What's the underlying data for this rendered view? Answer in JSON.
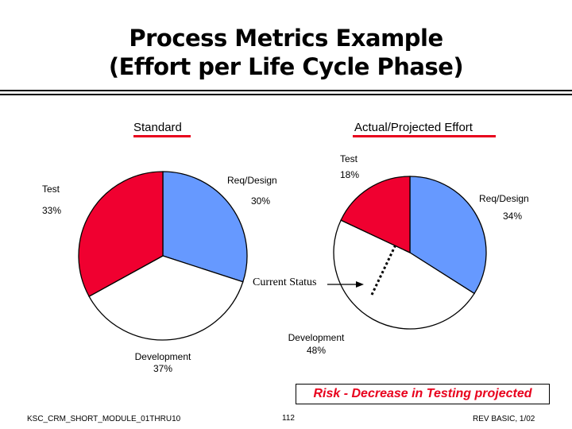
{
  "title_line1": "Process Metrics Example",
  "title_line2": "(Effort per Life Cycle Phase)",
  "colors": {
    "req_design": "#6699ff",
    "development": "#ffffff",
    "test": "#f00030",
    "accent": "#e8001c"
  },
  "chart_data": [
    {
      "type": "pie",
      "title": "Standard",
      "slices": [
        {
          "label": "Req/Design",
          "value": 30,
          "value_label": "30%"
        },
        {
          "label": "Development",
          "value": 37,
          "value_label": "37%"
        },
        {
          "label": "Test",
          "value": 33,
          "value_label": "33%"
        }
      ]
    },
    {
      "type": "pie",
      "title": "Actual/Projected  Effort",
      "slices": [
        {
          "label": "Req/Design",
          "value": 34,
          "value_label": "34%"
        },
        {
          "label": "Development",
          "value": 48,
          "value_label": "48%"
        },
        {
          "label": "Test",
          "value": 18,
          "value_label": "18%"
        }
      ],
      "annotation": "Current Status"
    }
  ],
  "risk_note": "Risk - Decrease in Testing projected",
  "footer": {
    "left": "KSC_CRM_SHORT_MODULE_01THRU10",
    "center": "112",
    "right": "REV BASIC, 1/02"
  }
}
